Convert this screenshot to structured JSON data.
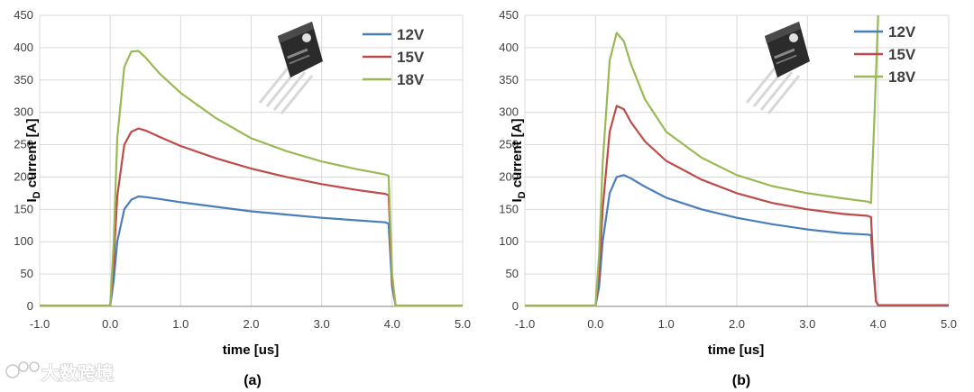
{
  "figure": {
    "panel_labels": [
      "(a)",
      "(b)"
    ],
    "watermark": "大数跨境",
    "colors": {
      "12V": "#4a7ebb",
      "15V": "#be4b48",
      "18V": "#98b954",
      "grid": "#d9d9d9",
      "axis": "#808080"
    },
    "icons": [
      "to247-transistor-package-icon",
      "watermark-logo-icon"
    ]
  },
  "chart_data": [
    {
      "type": "line",
      "panel": "(a)",
      "xlabel": "time [us]",
      "ylabel_main": "I",
      "ylabel_sub": "D",
      "ylabel_rest": " current [A]",
      "xlim": [
        -1.0,
        5.0
      ],
      "ylim": [
        0,
        450
      ],
      "xticks": [
        "-1.0",
        "0.0",
        "1.0",
        "2.0",
        "3.0",
        "4.0",
        "5.0"
      ],
      "yticks": [
        "0",
        "50",
        "100",
        "150",
        "200",
        "250",
        "300",
        "350",
        "400",
        "450"
      ],
      "grid": true,
      "legend": "top-right",
      "series": [
        {
          "name": "12V",
          "x": [
            -1.0,
            0.0,
            0.05,
            0.1,
            0.2,
            0.3,
            0.4,
            0.5,
            0.7,
            1.0,
            1.5,
            2.0,
            2.5,
            3.0,
            3.5,
            3.9,
            3.95,
            4.0,
            4.05,
            5.0
          ],
          "y": [
            1,
            1,
            40,
            100,
            150,
            165,
            170,
            169,
            166,
            161,
            154,
            147,
            142,
            137,
            133,
            130,
            128,
            30,
            1,
            1
          ]
        },
        {
          "name": "15V",
          "x": [
            -1.0,
            0.0,
            0.05,
            0.1,
            0.2,
            0.3,
            0.4,
            0.5,
            0.7,
            1.0,
            1.5,
            2.0,
            2.5,
            3.0,
            3.5,
            3.9,
            3.95,
            4.0,
            4.05,
            5.0
          ],
          "y": [
            1,
            1,
            70,
            170,
            250,
            270,
            275,
            272,
            262,
            248,
            229,
            213,
            200,
            189,
            180,
            174,
            172,
            40,
            1,
            1
          ]
        },
        {
          "name": "18V",
          "x": [
            -1.0,
            0.0,
            0.05,
            0.1,
            0.2,
            0.3,
            0.4,
            0.5,
            0.7,
            1.0,
            1.5,
            2.0,
            2.5,
            3.0,
            3.5,
            3.9,
            3.95,
            4.0,
            4.05,
            5.0
          ],
          "y": [
            1,
            1,
            100,
            260,
            370,
            394,
            395,
            385,
            360,
            330,
            291,
            260,
            240,
            224,
            212,
            204,
            202,
            50,
            1,
            1
          ]
        }
      ]
    },
    {
      "type": "line",
      "panel": "(b)",
      "xlabel": "time [us]",
      "ylabel_main": "I",
      "ylabel_sub": "D",
      "ylabel_rest": " current [A]",
      "xlim": [
        -1.0,
        5.0
      ],
      "ylim": [
        0,
        450
      ],
      "xticks": [
        "-1.0",
        "0.0",
        "1.0",
        "2.0",
        "3.0",
        "4.0",
        "5.0"
      ],
      "yticks": [
        "0",
        "50",
        "100",
        "150",
        "200",
        "250",
        "300",
        "350",
        "400",
        "450"
      ],
      "grid": true,
      "legend": "top-right",
      "series": [
        {
          "name": "12V",
          "x": [
            -1.0,
            0.0,
            0.05,
            0.1,
            0.2,
            0.3,
            0.4,
            0.5,
            0.7,
            1.0,
            1.5,
            2.0,
            2.5,
            3.0,
            3.5,
            3.85,
            3.9,
            3.93,
            3.97,
            4.0,
            5.0
          ],
          "y": [
            1,
            1,
            30,
            100,
            175,
            200,
            203,
            198,
            185,
            168,
            150,
            137,
            127,
            119,
            113,
            111,
            110,
            60,
            8,
            2,
            2
          ]
        },
        {
          "name": "15V",
          "x": [
            -1.0,
            0.0,
            0.05,
            0.1,
            0.2,
            0.3,
            0.4,
            0.5,
            0.7,
            1.0,
            1.5,
            2.0,
            2.5,
            3.0,
            3.5,
            3.85,
            3.9,
            3.93,
            3.97,
            4.0,
            5.0
          ],
          "y": [
            1,
            1,
            50,
            150,
            270,
            310,
            305,
            285,
            255,
            225,
            196,
            175,
            160,
            150,
            143,
            140,
            138,
            70,
            8,
            2,
            2
          ]
        },
        {
          "name": "18V",
          "x": [
            -1.0,
            0.0,
            0.05,
            0.1,
            0.2,
            0.3,
            0.4,
            0.5,
            0.7,
            1.0,
            1.5,
            2.0,
            2.5,
            3.0,
            3.5,
            3.85,
            3.9,
            3.95,
            4.0
          ],
          "y": [
            1,
            1,
            80,
            220,
            380,
            423,
            410,
            375,
            320,
            270,
            230,
            203,
            186,
            175,
            167,
            162,
            160,
            300,
            450
          ]
        }
      ]
    }
  ]
}
